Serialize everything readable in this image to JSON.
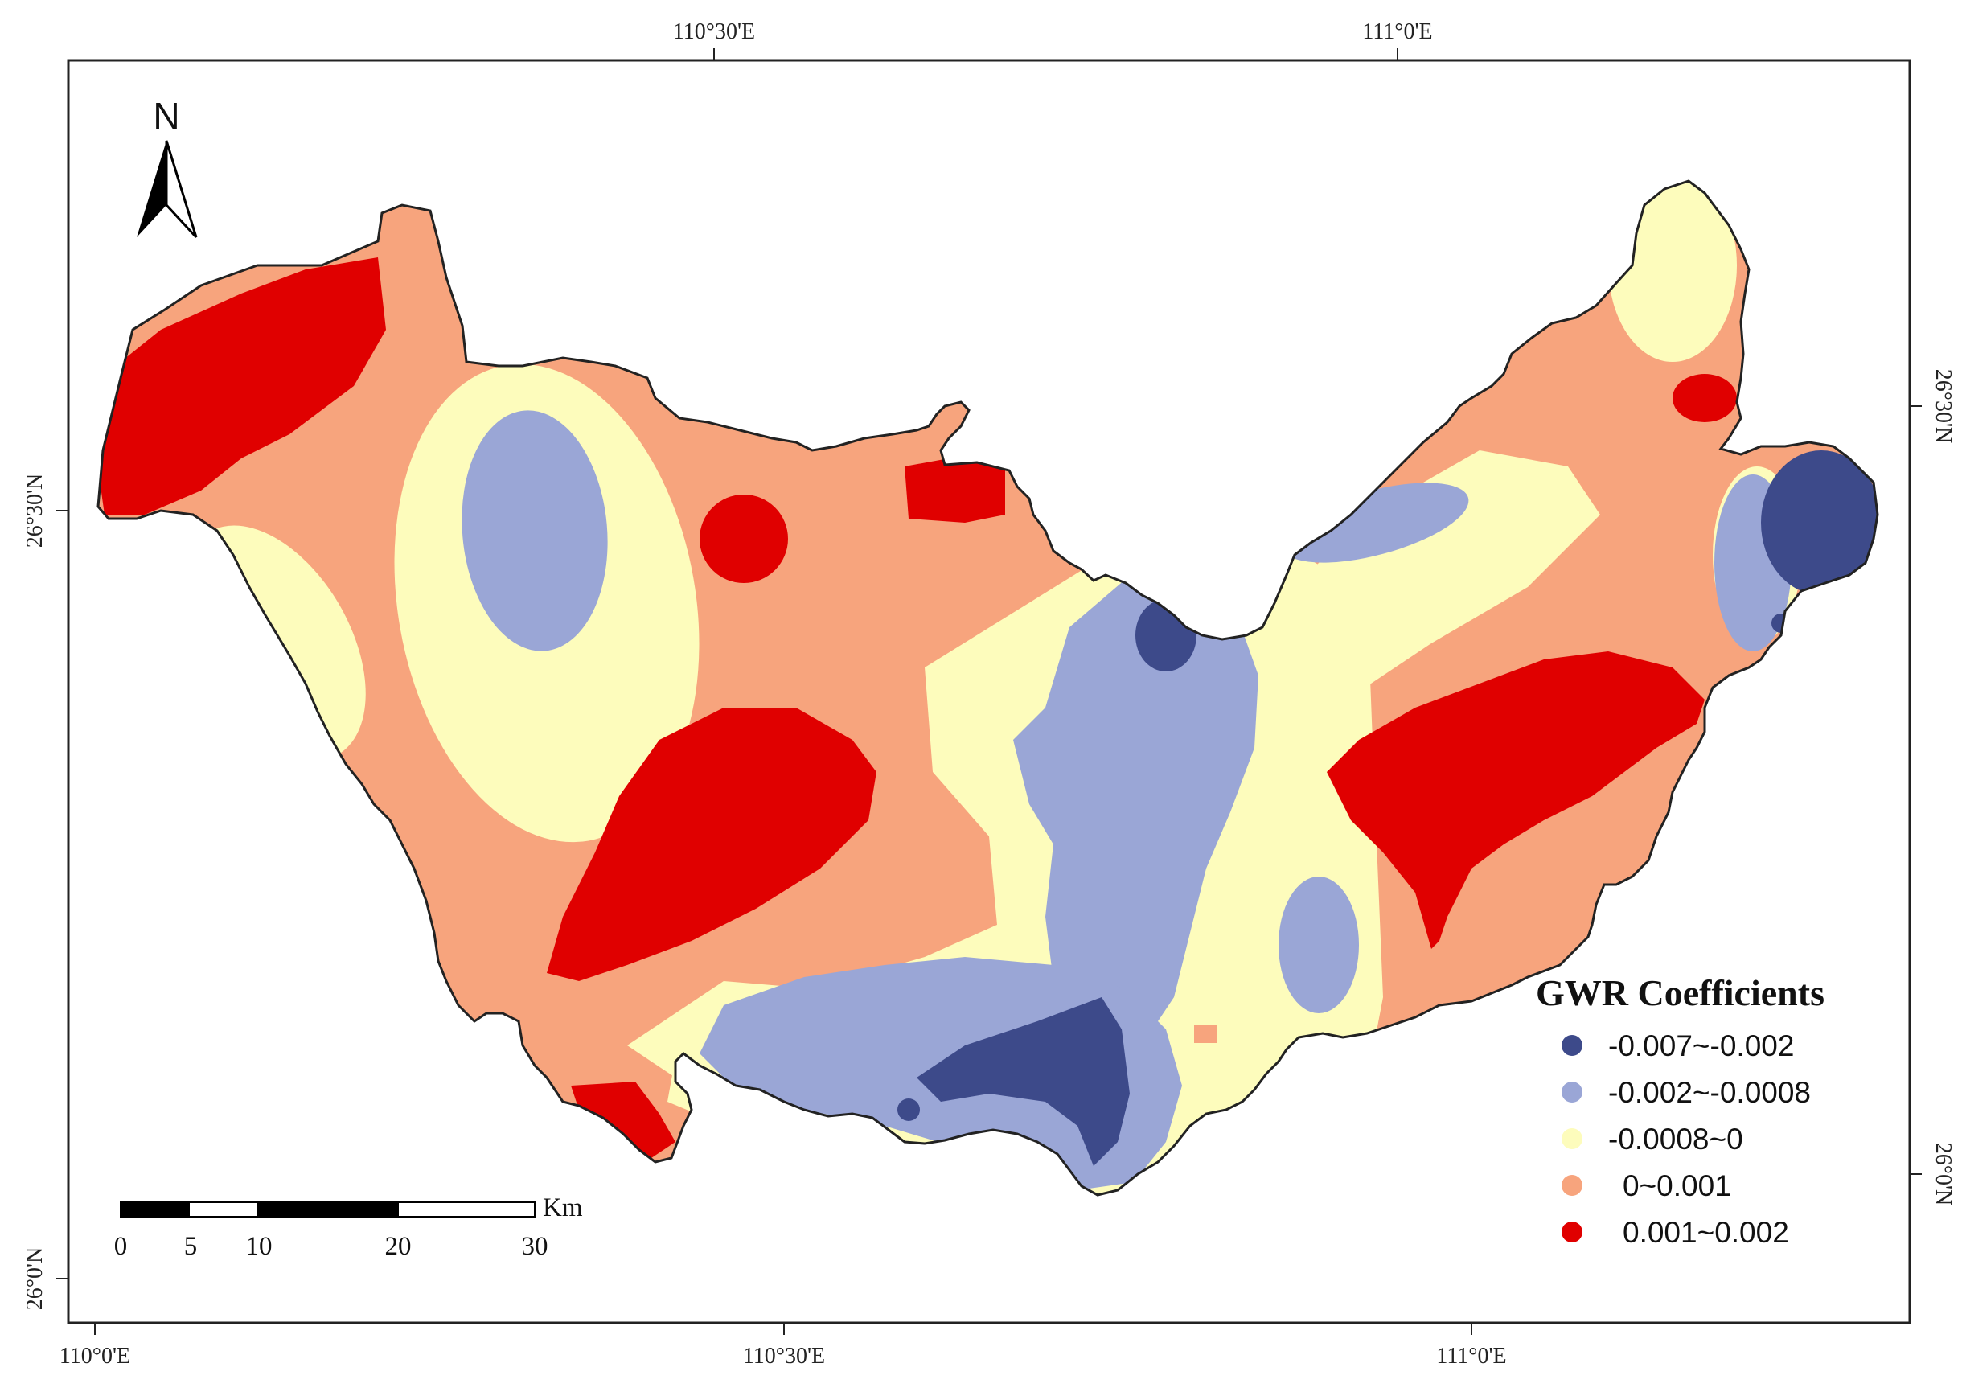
{
  "map": {
    "top_axis": [
      "110°30'E",
      "111°0'E"
    ],
    "bottom_axis": [
      "110°0'E",
      "110°30'E",
      "111°0'E"
    ],
    "left_axis": [
      "26°30'N",
      "26°0'N"
    ],
    "right_axis": [
      "26°30'N",
      "26°0'N"
    ]
  },
  "north_arrow": {
    "label": "N"
  },
  "scale_bar": {
    "unit": "Km",
    "ticks": [
      "0",
      "5",
      "10",
      "20",
      "30"
    ]
  },
  "legend": {
    "title": "GWR Coefficients",
    "items": [
      {
        "label": "-0.007~-0.002",
        "color": "#3d4a8a"
      },
      {
        "label": "-0.002~-0.0008",
        "color": "#9aa6d6"
      },
      {
        "label": "-0.0008~0",
        "color": "#fdfcbc"
      },
      {
        "label": "0~0.001",
        "color": "#f7a47d"
      },
      {
        "label": "0.001~0.002",
        "color": "#e00000"
      }
    ]
  }
}
